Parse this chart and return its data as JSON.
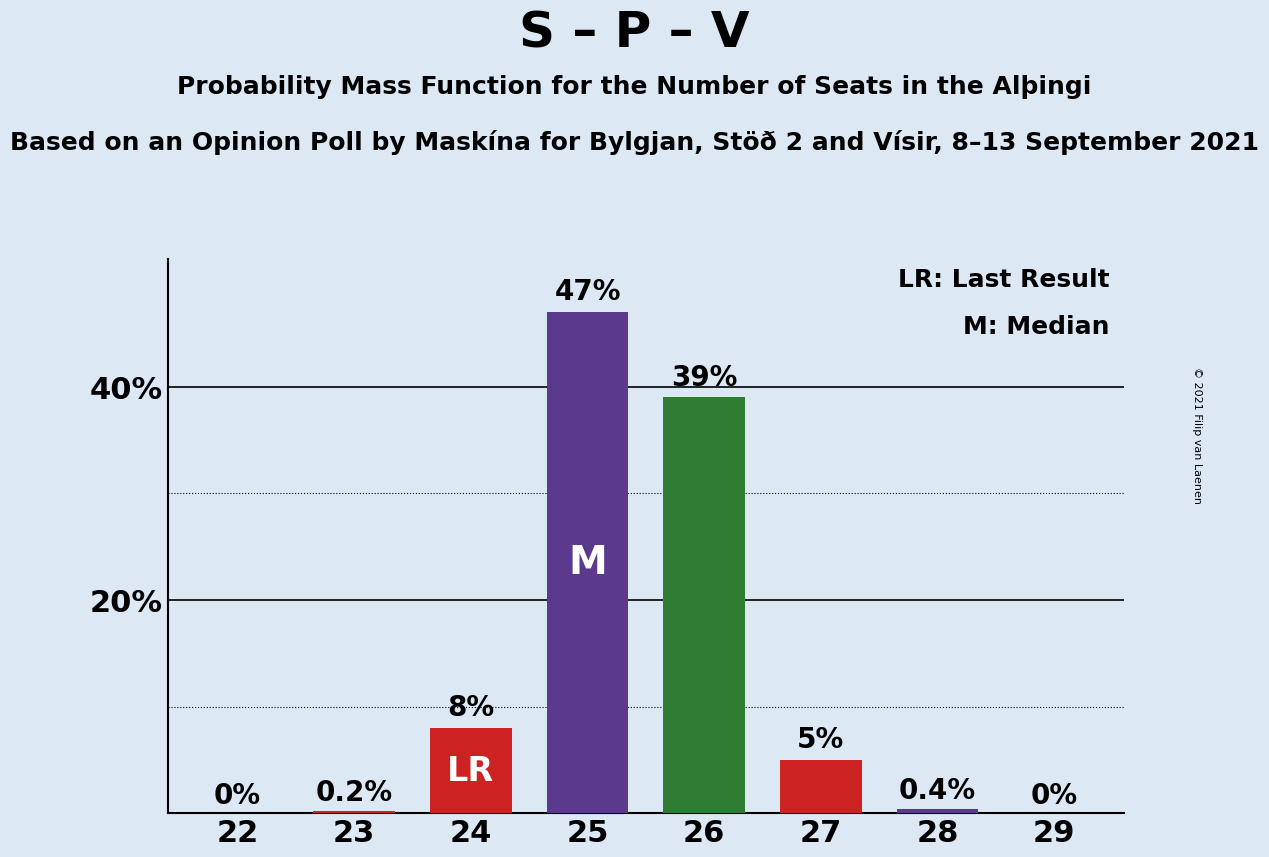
{
  "title": "S – P – V",
  "subtitle1": "Probability Mass Function for the Number of Seats in the Alþingi",
  "subtitle2": "Based on an Opinion Poll by Maskína for Bylgjan, Stöð 2 and Vísir, 8–13 September 2021",
  "copyright": "© 2021 Filip van Laenen",
  "seats": [
    22,
    23,
    24,
    25,
    26,
    27,
    28,
    29
  ],
  "values": [
    0.0,
    0.2,
    8.0,
    47.0,
    39.0,
    5.0,
    0.4,
    0.0
  ],
  "bar_colors": [
    "#cc2222",
    "#cc2222",
    "#cc2222",
    "#5b3a8e",
    "#2e7d32",
    "#cc2222",
    "#5b3a8e",
    "#cc2222"
  ],
  "last_result_seat": 24,
  "median_seat": 25,
  "lr_label": "LR",
  "m_label": "M",
  "legend_lr": "LR: Last Result",
  "legend_m": "M: Median",
  "background_color": "#dce9f5",
  "ylim": [
    0,
    52
  ],
  "solid_grid_ticks": [
    20,
    40
  ],
  "dotted_ticks": [
    10,
    30
  ],
  "solid_grid_color": "#000000",
  "title_fontsize": 36,
  "subtitle1_fontsize": 18,
  "subtitle2_fontsize": 18,
  "bar_label_fontsize": 20,
  "axis_tick_fontsize": 22,
  "annotation_fontsize": 24,
  "bar_width": 0.7
}
